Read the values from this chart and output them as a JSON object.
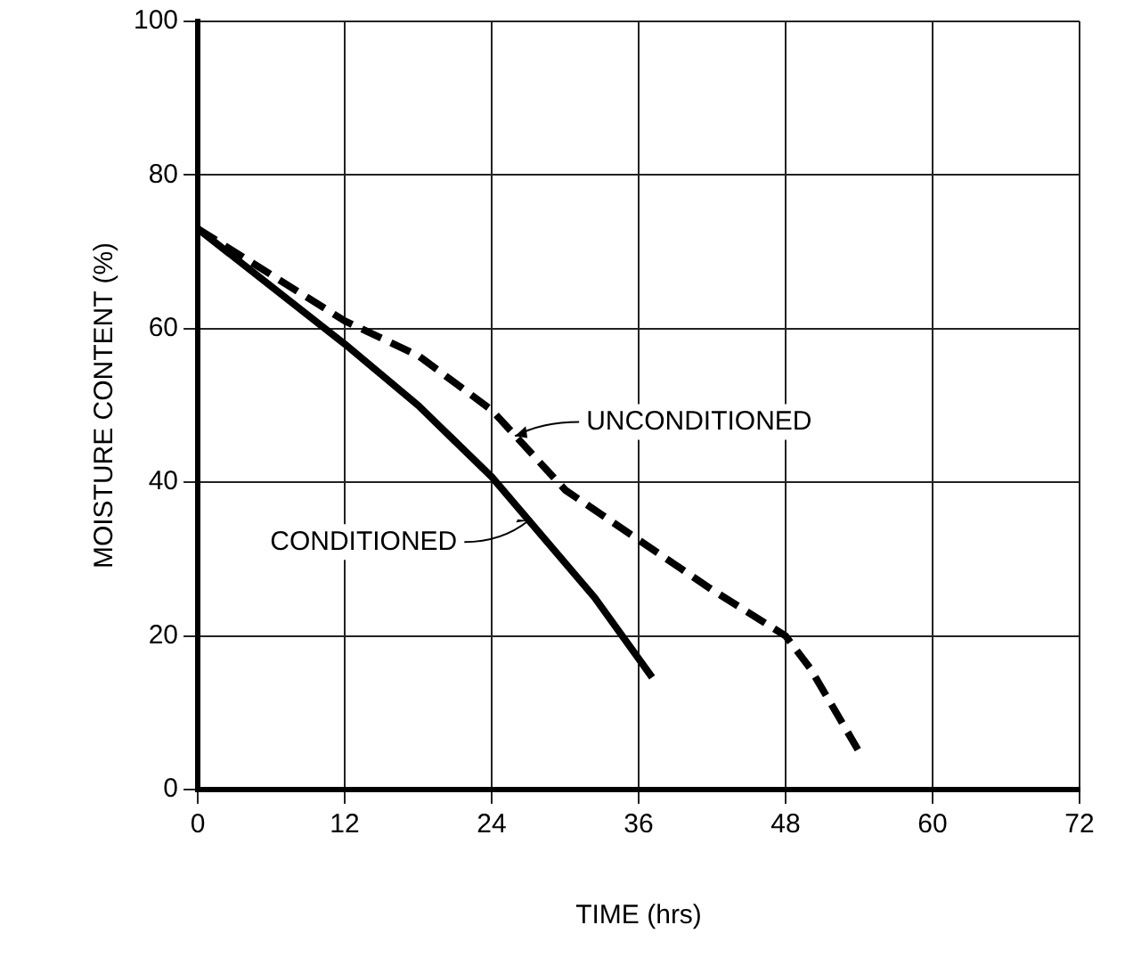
{
  "chart_data": {
    "type": "line",
    "xlabel": "TIME (hrs)",
    "ylabel": "MOISTURE CONTENT (%)",
    "xlim": [
      0,
      72
    ],
    "xticks": [
      0,
      12,
      24,
      36,
      48,
      60,
      72
    ],
    "ylim": [
      0,
      100
    ],
    "yticks": [
      0,
      20,
      40,
      60,
      80,
      100
    ],
    "grid": true,
    "legend": false,
    "marker": "none",
    "series": [
      {
        "color": "#000000",
        "line_style": "solid",
        "x": [
          0,
          12,
          18,
          24,
          32.4,
          37.1
        ],
        "values": [
          73,
          58,
          50,
          40.7,
          25,
          14.6
        ]
      },
      {
        "color": "#000000",
        "line_style": "dashed",
        "x": [
          0,
          12,
          18,
          24,
          30,
          36,
          42,
          48,
          50,
          53.9
        ],
        "values": [
          73,
          61,
          56.5,
          49.4,
          39,
          32.5,
          26,
          20,
          15.8,
          5.2
        ]
      }
    ],
    "annotations": [
      {
        "text": "UNCONDITIONED",
        "x": 25.9,
        "y": 46
      },
      {
        "text": "CONDITIONED",
        "x": 27,
        "y": 35
      }
    ]
  }
}
